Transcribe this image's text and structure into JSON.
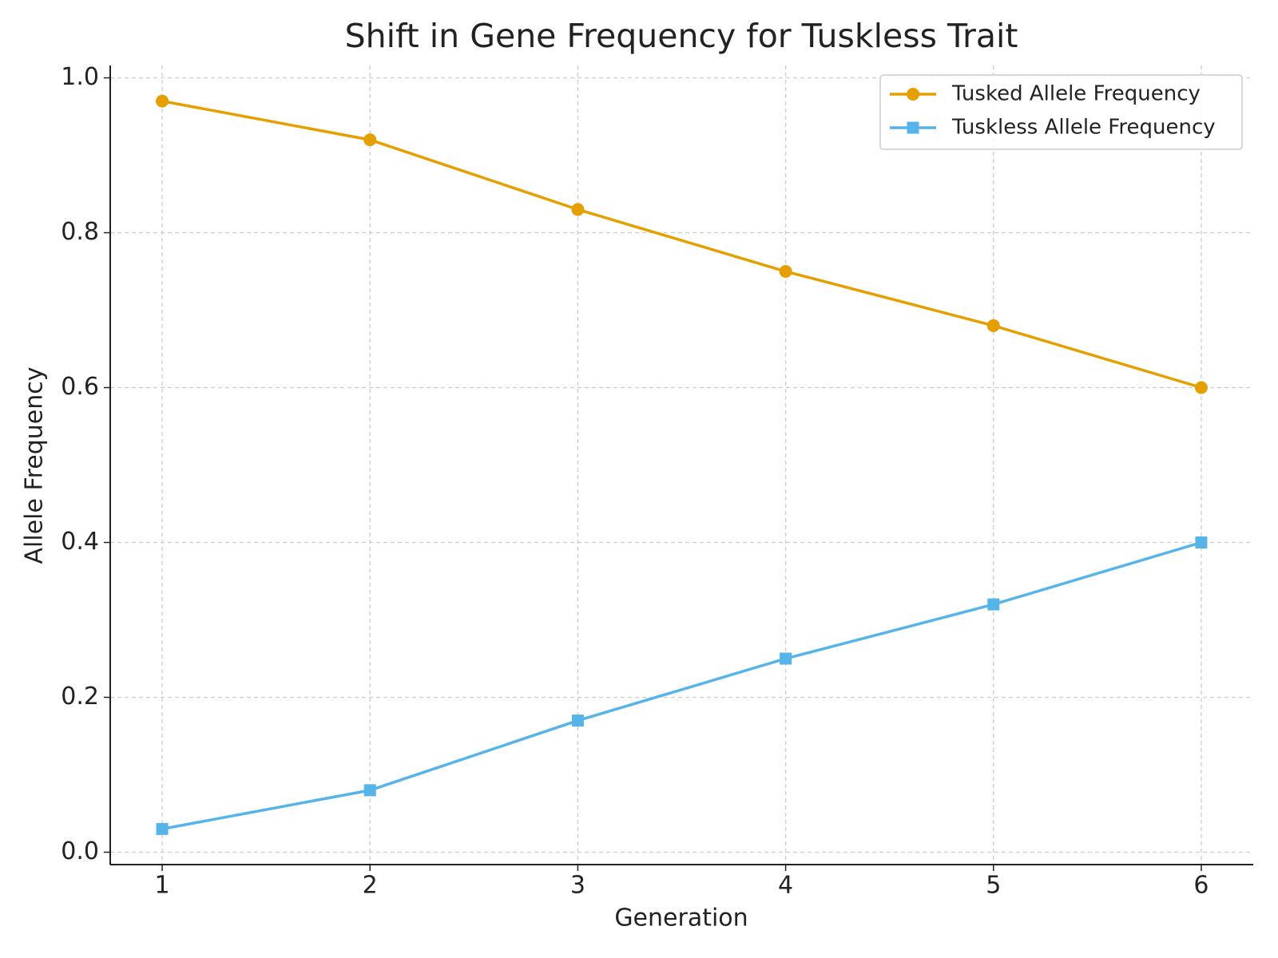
{
  "chart_data": {
    "type": "line",
    "title": "Shift in Gene Frequency for Tuskless Trait",
    "x_label": "Generation",
    "y_label": "Allele Frequency",
    "x": [
      1,
      2,
      3,
      4,
      5,
      6
    ],
    "series": [
      {
        "name": "Tusked Allele Frequency",
        "color": "#e69f00",
        "marker": "circle",
        "values": [
          0.97,
          0.92,
          0.83,
          0.75,
          0.68,
          0.6
        ]
      },
      {
        "name": "Tuskless Allele Frequency",
        "color": "#56b4e9",
        "marker": "square",
        "values": [
          0.03,
          0.08,
          0.17,
          0.25,
          0.32,
          0.4
        ]
      }
    ],
    "xlim": [
      0.75,
      6.25
    ],
    "xticks": [
      1,
      2,
      3,
      4,
      5,
      6
    ],
    "ylim": [
      -0.016,
      1.016
    ],
    "yticks": [
      {
        "value": 0,
        "label": "0.0"
      },
      0.2,
      0.4,
      0.6,
      0.8,
      {
        "value": 1,
        "label": "1.0"
      }
    ],
    "grid": true,
    "legend": "upper right"
  }
}
